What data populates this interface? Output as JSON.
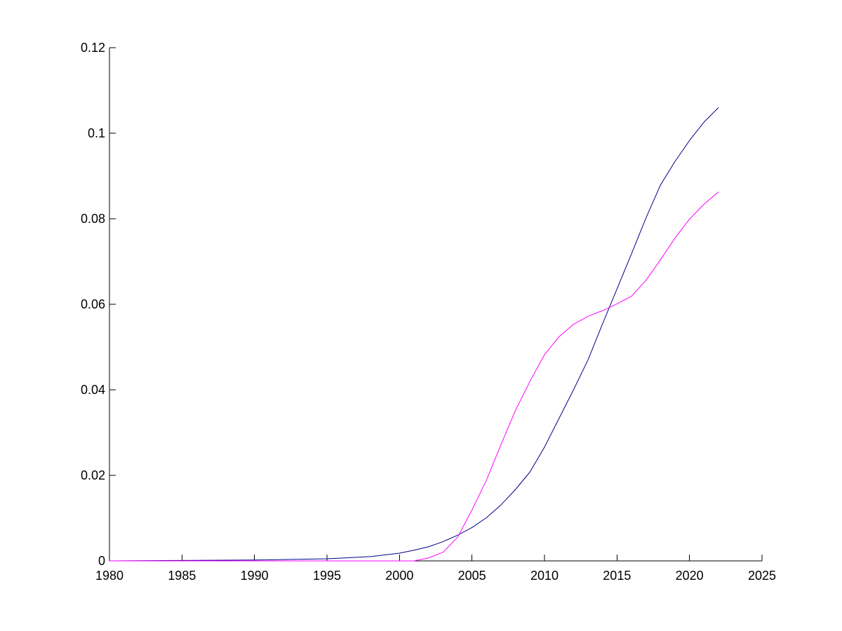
{
  "chart_data": {
    "type": "line",
    "title": "",
    "xlabel": "",
    "ylabel": "",
    "xlim": [
      1980,
      2025
    ],
    "ylim": [
      0,
      0.12
    ],
    "grid": false,
    "x_ticks": [
      "1980",
      "1985",
      "1990",
      "1995",
      "2000",
      "2005",
      "2010",
      "2015",
      "2020",
      "2025"
    ],
    "y_ticks": [
      "0",
      "0.02",
      "0.04",
      "0.06",
      "0.08",
      "0.1",
      "0.12"
    ],
    "series": [
      {
        "color": "#00008b",
        "points": [
          [
            1980,
            0
          ],
          [
            1985,
            0.0001
          ],
          [
            1990,
            0.0002
          ],
          [
            1995,
            0.0005
          ],
          [
            1998,
            0.001
          ],
          [
            2000,
            0.0018
          ],
          [
            2001,
            0.0025
          ],
          [
            2002,
            0.0033
          ],
          [
            2003,
            0.0045
          ],
          [
            2004,
            0.006
          ],
          [
            2005,
            0.0078
          ],
          [
            2006,
            0.0101
          ],
          [
            2007,
            0.0131
          ],
          [
            2008,
            0.0167
          ],
          [
            2009,
            0.0208
          ],
          [
            2010,
            0.0266
          ],
          [
            2011,
            0.0333
          ],
          [
            2012,
            0.04
          ],
          [
            2013,
            0.047
          ],
          [
            2014,
            0.0554
          ],
          [
            2015,
            0.0636
          ],
          [
            2016,
            0.0718
          ],
          [
            2017,
            0.0802
          ],
          [
            2018,
            0.0879
          ],
          [
            2019,
            0.0934
          ],
          [
            2020,
            0.0983
          ],
          [
            2021,
            0.1026
          ],
          [
            2022,
            0.106
          ]
        ]
      },
      {
        "color": "#ff00ff",
        "points": [
          [
            1980,
            0
          ],
          [
            1985,
            0
          ],
          [
            1990,
            0
          ],
          [
            1995,
            0
          ],
          [
            2000,
            0
          ],
          [
            2001,
            0
          ],
          [
            2002,
            0.0007
          ],
          [
            2003,
            0.002
          ],
          [
            2004,
            0.0055
          ],
          [
            2005,
            0.0119
          ],
          [
            2006,
            0.0189
          ],
          [
            2007,
            0.0272
          ],
          [
            2008,
            0.0352
          ],
          [
            2009,
            0.042
          ],
          [
            2010,
            0.0482
          ],
          [
            2011,
            0.0524
          ],
          [
            2012,
            0.0553
          ],
          [
            2013,
            0.0572
          ],
          [
            2014,
            0.0585
          ],
          [
            2015,
            0.0601
          ],
          [
            2016,
            0.0619
          ],
          [
            2017,
            0.0656
          ],
          [
            2018,
            0.0704
          ],
          [
            2019,
            0.0755
          ],
          [
            2020,
            0.0799
          ],
          [
            2021,
            0.0834
          ],
          [
            2022,
            0.0863
          ]
        ]
      }
    ]
  }
}
